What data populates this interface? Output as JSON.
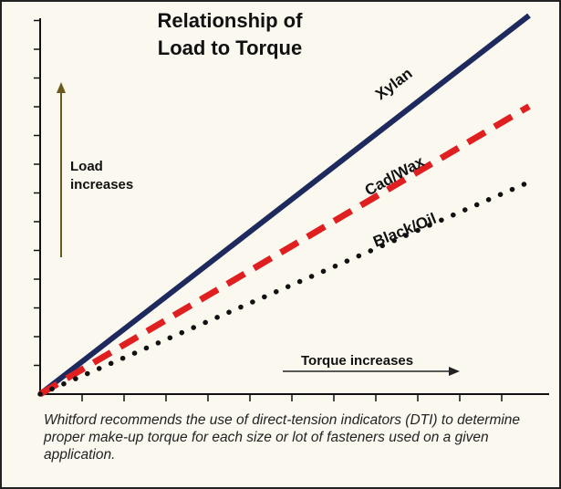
{
  "chart_data": {
    "type": "line",
    "title": [
      "Relationship of",
      "Load to Torque"
    ],
    "xlabel": "Torque increases",
    "ylabel": [
      "Load",
      "increases"
    ],
    "x": [
      0,
      1
    ],
    "xlim": [
      0,
      1
    ],
    "ylim": [
      0,
      1
    ],
    "series": [
      {
        "name": "Xylan",
        "values": [
          0,
          1.0
        ],
        "color": "#1e2a5e",
        "style": "solid"
      },
      {
        "name": "Cad/Wax",
        "values": [
          0,
          0.76
        ],
        "color": "#e02020",
        "style": "dashed"
      },
      {
        "name": "Black/Oil",
        "values": [
          0,
          0.56
        ],
        "color": "#111111",
        "style": "dotted"
      }
    ]
  },
  "caption": "Whitford recommends the use of direct-tension indicators (DTI) to determine proper make-up torque for each size or lot of fasteners used on a given application."
}
